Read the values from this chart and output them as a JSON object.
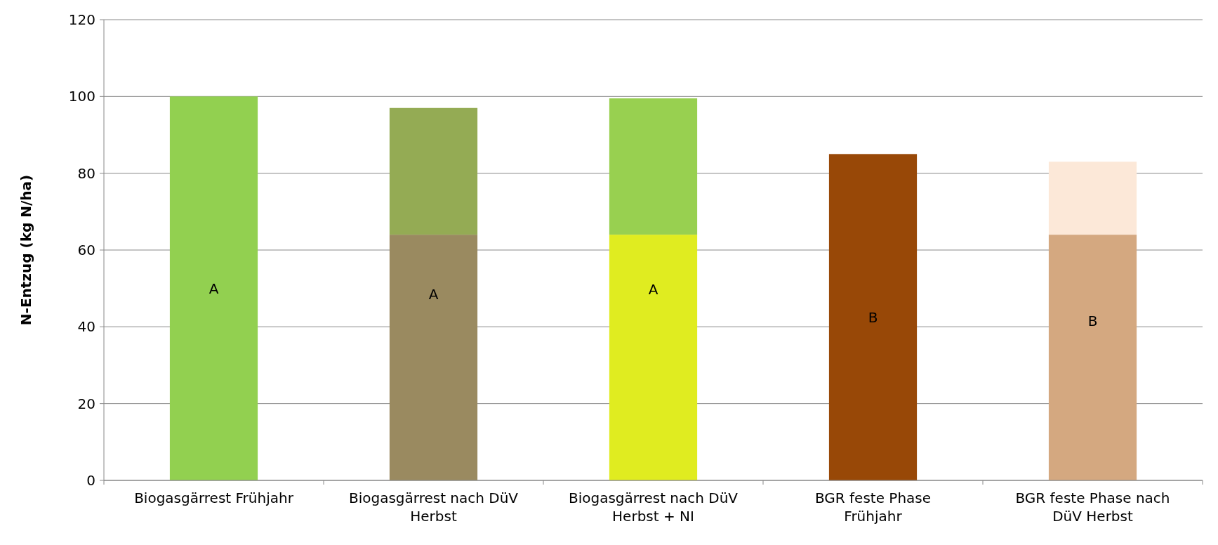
{
  "chart_data": {
    "type": "bar",
    "ylabel": "N-Entzug (kg N/ha)",
    "stacked": true,
    "categories": [
      "Biogasgärrest Frühjahr",
      "Biogasgärrest nach DüV Herbst",
      "Biogasgärrest nach DüV Herbst + NI",
      "BGR feste Phase Frühjahr",
      "BGR feste Phase nach DüV Herbst"
    ],
    "series": [
      {
        "values": [
          100,
          64,
          64,
          85,
          64
        ],
        "colors": [
          "#92d050",
          "#9a8a60",
          "#e0ec20",
          "#984807",
          "#d4a880"
        ]
      },
      {
        "values": [
          null,
          33,
          35.5,
          null,
          19
        ],
        "colors": [
          null,
          "#94ab54",
          "#98d050",
          null,
          "#fce8d8"
        ]
      }
    ],
    "ylim": [
      0,
      120
    ],
    "yticks": [
      0,
      20,
      40,
      60,
      80,
      100,
      120
    ],
    "grid": "y",
    "annotations": [
      "A",
      "A",
      "A",
      "B",
      "B"
    ]
  }
}
